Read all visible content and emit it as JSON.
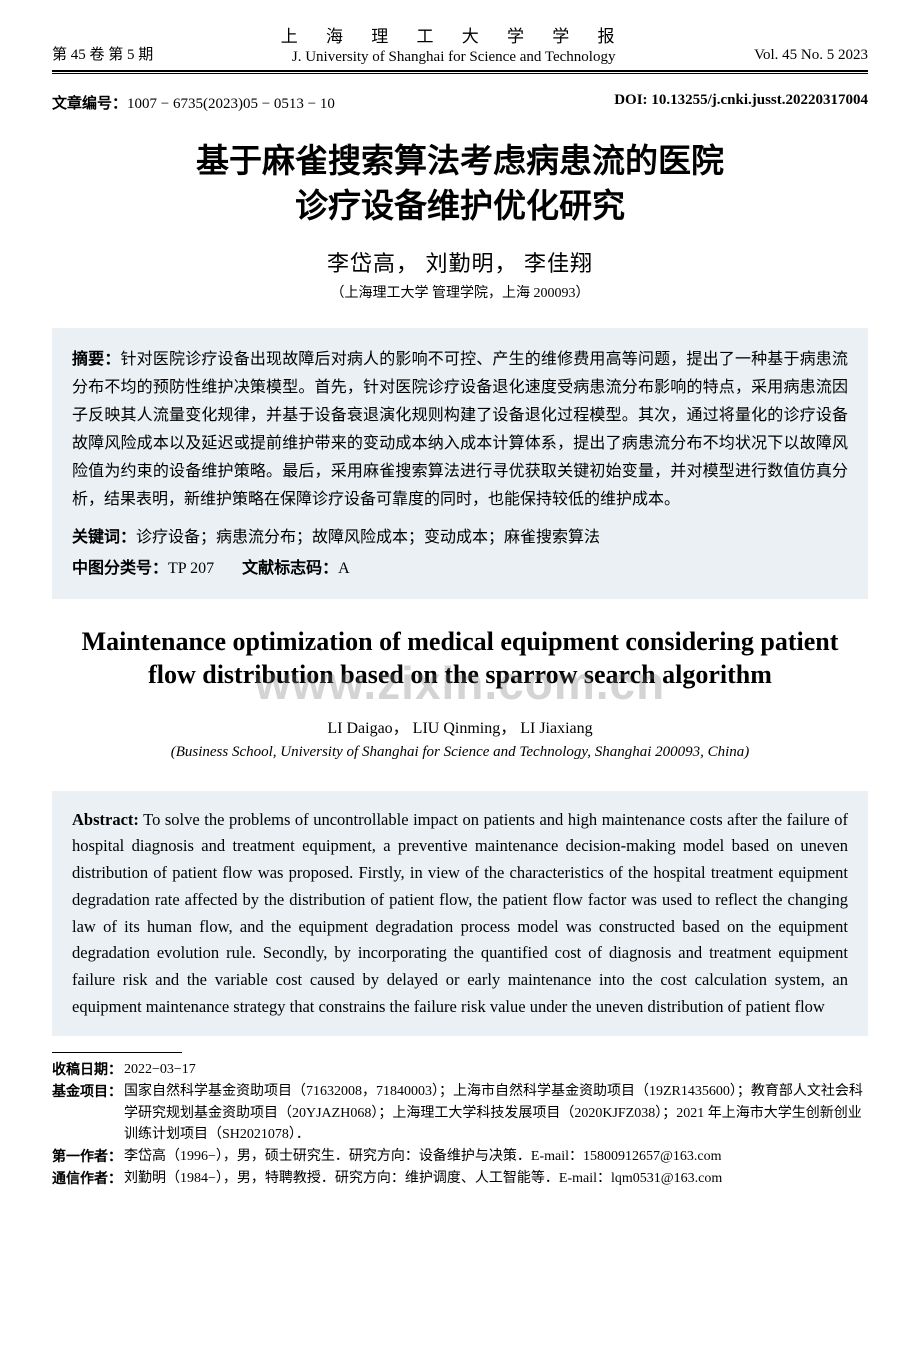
{
  "header": {
    "volume_issue_cn": "第 45 卷   第 5 期",
    "journal_cn": "上 海 理 工 大 学 学 报",
    "journal_en": "J. University of Shanghai for Science and Technology",
    "volume_issue_en": "Vol. 45   No. 5   2023"
  },
  "article_id": {
    "label": "文章编号：",
    "value": "1007 − 6735(2023)05 − 0513 − 10",
    "doi_label": "DOI:",
    "doi": "10.13255/j.cnki.jusst.20220317004"
  },
  "title_cn_line1": "基于麻雀搜索算法考虑病患流的医院",
  "title_cn_line2": "诊疗设备维护优化研究",
  "authors_cn": "李岱高，    刘勤明，    李佳翔",
  "affil_cn": "（上海理工大学 管理学院，上海 200093）",
  "abstract_cn": {
    "label": "摘要：",
    "text": "针对医院诊疗设备出现故障后对病人的影响不可控、产生的维修费用高等问题，提出了一种基于病患流分布不均的预防性维护决策模型。首先，针对医院诊疗设备退化速度受病患流分布影响的特点，采用病患流因子反映其人流量变化规律，并基于设备衰退演化规则构建了设备退化过程模型。其次，通过将量化的诊疗设备故障风险成本以及延迟或提前维护带来的变动成本纳入成本计算体系，提出了病患流分布不均状况下以故障风险值为约束的设备维护策略。最后，采用麻雀搜索算法进行寻优获取关键初始变量，并对模型进行数值仿真分析，结果表明，新维护策略在保障诊疗设备可靠度的同时，也能保持较低的维护成本。",
    "kw_label": "关键词：",
    "kw": "诊疗设备；病患流分布；故障风险成本；变动成本；麻雀搜索算法",
    "clc_label": "中图分类号：",
    "clc": "TP 207",
    "dcc_label": "文献标志码：",
    "dcc": "A"
  },
  "watermark": "www.zixin.com.cn",
  "title_en": "Maintenance optimization of medical equipment considering patient flow distribution based on the sparrow search algorithm",
  "authors_en": "LI Daigao，   LIU Qinming，   LI Jiaxiang",
  "affil_en": "(Business School, University of Shanghai for Science and Technology, Shanghai 200093, China)",
  "abstract_en": {
    "label": "Abstract:",
    "text": " To solve the problems of uncontrollable impact on patients and high maintenance costs after the failure of hospital diagnosis and treatment equipment, a preventive maintenance decision-making model based on uneven distribution of patient flow was proposed. Firstly, in view of the characteristics of the hospital treatment equipment degradation rate affected by the distribution of patient flow, the patient flow factor was used to reflect the changing law of its human flow, and the equipment degradation process model was constructed based on the equipment degradation evolution rule. Secondly, by incorporating the quantified cost of diagnosis and treatment equipment failure risk and the variable cost caused by delayed or early maintenance into the cost calculation system, an equipment maintenance strategy that constrains the failure risk value under the uneven distribution of patient flow"
  },
  "footnotes": {
    "received_label": "收稿日期：",
    "received": "2022−03−17",
    "fund_label": "基金项目：",
    "fund": "国家自然科学基金资助项目（71632008，71840003）；上海市自然科学基金资助项目（19ZR1435600）；教育部人文社会科学研究规划基金资助项目（20YJAZH068）；上海理工大学科技发展项目（2020KJFZ038）；2021 年上海市大学生创新创业训练计划项目（SH2021078）．",
    "first_author_label": "第一作者：",
    "first_author": "李岱高（1996−），男，硕士研究生．研究方向：设备维护与决策．E-mail：15800912657@163.com",
    "corr_author_label": "通信作者：",
    "corr_author": "刘勤明（1984−），男，特聘教授．研究方向：维护调度、人工智能等．E-mail：lqm0531@163.com"
  },
  "colors": {
    "abstract_bg": "#eaf0f3",
    "text": "#000000",
    "watermark": "rgba(120,120,120,0.32)"
  }
}
